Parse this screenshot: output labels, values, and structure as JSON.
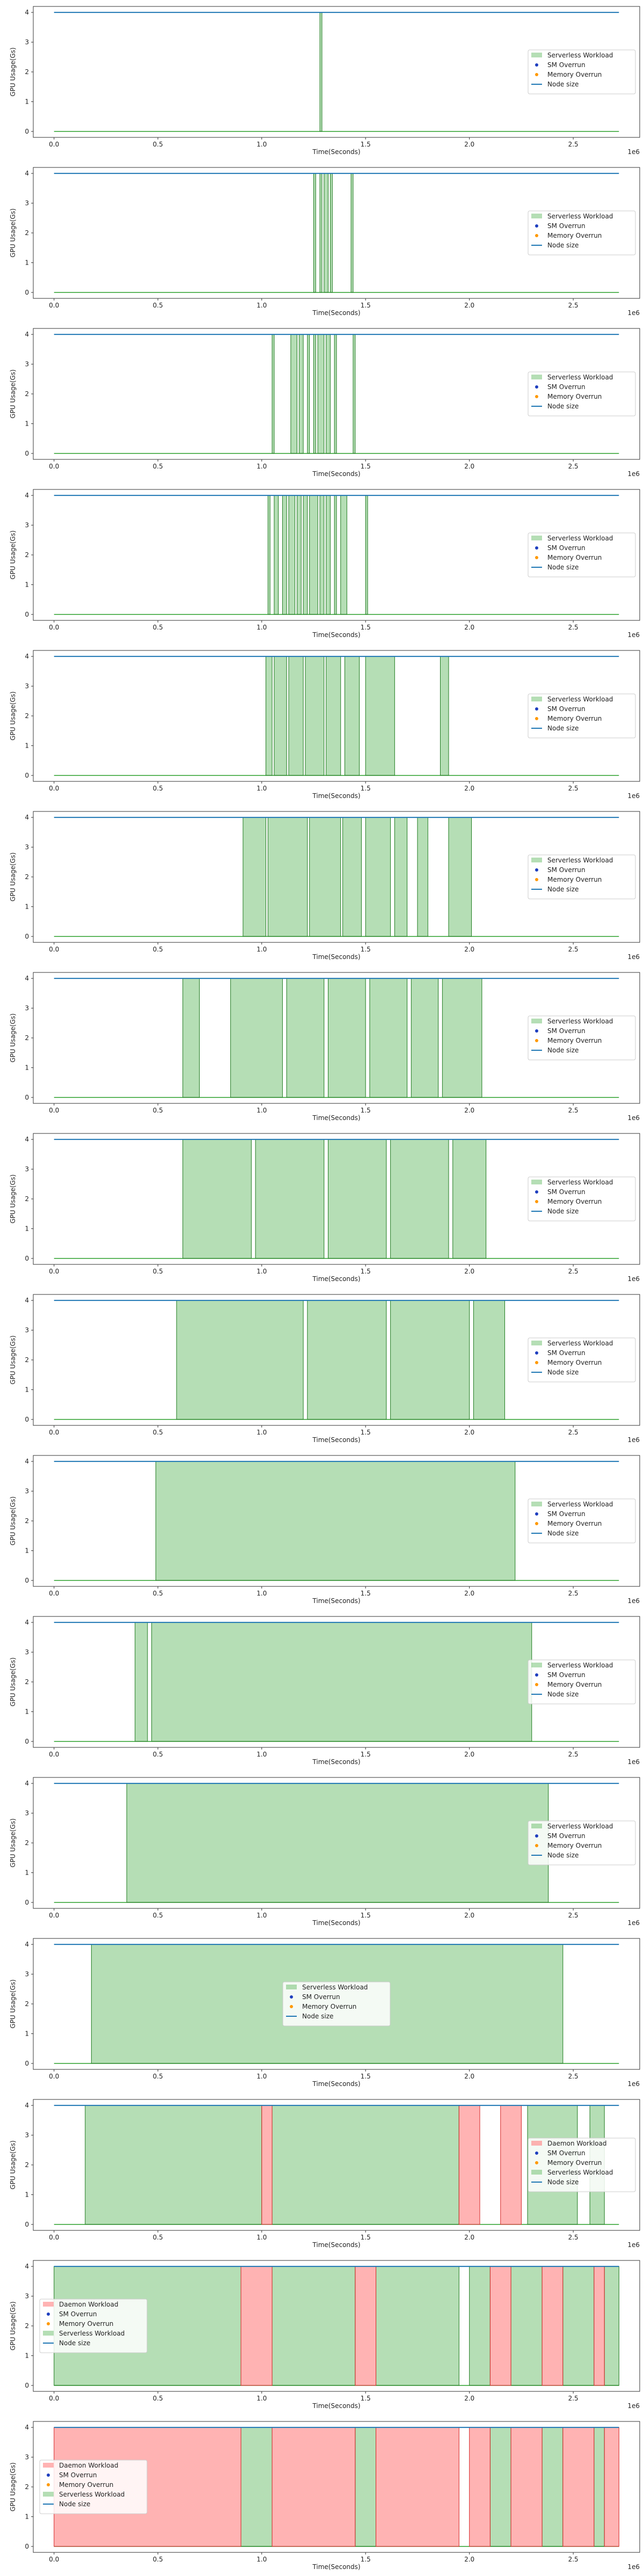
{
  "chart_data": [
    {
      "type": "area",
      "xlabel": "Time(Seconds)",
      "ylabel": "GPU Usage(Gs)",
      "x_offset_label": "1e6",
      "xlim": [
        -0.1,
        2.82
      ],
      "ylim": [
        -0.2,
        4.2
      ],
      "xticks": [
        0.0,
        0.5,
        1.0,
        1.5,
        2.0,
        2.5
      ],
      "yticks": [
        0,
        1,
        2,
        3,
        4
      ],
      "node_size": 4,
      "legend": {
        "placement": "center-right",
        "entries": [
          "Serverless Workload",
          "SM Overrun",
          "Memory Overrun",
          "Node size"
        ]
      },
      "series": [
        {
          "name": "Serverless Workload",
          "color": "#2ca02c",
          "segments": [
            [
              1.28,
              1.29
            ]
          ]
        }
      ]
    },
    {
      "type": "area",
      "xlabel": "Time(Seconds)",
      "ylabel": "GPU Usage(Gs)",
      "x_offset_label": "1e6",
      "xlim": [
        -0.1,
        2.82
      ],
      "ylim": [
        -0.2,
        4.2
      ],
      "xticks": [
        0.0,
        0.5,
        1.0,
        1.5,
        2.0,
        2.5
      ],
      "yticks": [
        0,
        1,
        2,
        3,
        4
      ],
      "node_size": 4,
      "legend": {
        "placement": "center-right",
        "entries": [
          "Serverless Workload",
          "SM Overrun",
          "Memory Overrun",
          "Node size"
        ]
      },
      "series": [
        {
          "name": "Serverless Workload",
          "color": "#2ca02c",
          "segments": [
            [
              1.25,
              1.26
            ],
            [
              1.28,
              1.29
            ],
            [
              1.3,
              1.32
            ],
            [
              1.33,
              1.34
            ],
            [
              1.43,
              1.44
            ]
          ]
        }
      ]
    },
    {
      "type": "area",
      "xlabel": "Time(Seconds)",
      "ylabel": "GPU Usage(Gs)",
      "x_offset_label": "1e6",
      "xlim": [
        -0.1,
        2.82
      ],
      "ylim": [
        -0.2,
        4.2
      ],
      "xticks": [
        0.0,
        0.5,
        1.0,
        1.5,
        2.0,
        2.5
      ],
      "yticks": [
        0,
        1,
        2,
        3,
        4
      ],
      "node_size": 4,
      "legend": {
        "placement": "center-right",
        "entries": [
          "Serverless Workload",
          "SM Overrun",
          "Memory Overrun",
          "Node size"
        ]
      },
      "series": [
        {
          "name": "Serverless Workload",
          "color": "#2ca02c",
          "segments": [
            [
              1.05,
              1.06
            ],
            [
              1.14,
              1.17
            ],
            [
              1.18,
              1.2
            ],
            [
              1.22,
              1.23
            ],
            [
              1.25,
              1.26
            ],
            [
              1.27,
              1.3
            ],
            [
              1.31,
              1.33
            ],
            [
              1.35,
              1.36
            ],
            [
              1.44,
              1.45
            ]
          ]
        }
      ]
    },
    {
      "type": "area",
      "xlabel": "Time(Seconds)",
      "ylabel": "GPU Usage(Gs)",
      "x_offset_label": "1e6",
      "xlim": [
        -0.1,
        2.82
      ],
      "ylim": [
        -0.2,
        4.2
      ],
      "xticks": [
        0.0,
        0.5,
        1.0,
        1.5,
        2.0,
        2.5
      ],
      "yticks": [
        0,
        1,
        2,
        3,
        4
      ],
      "node_size": 4,
      "legend": {
        "placement": "center-right",
        "entries": [
          "Serverless Workload",
          "SM Overrun",
          "Memory Overrun",
          "Node size"
        ]
      },
      "series": [
        {
          "name": "Serverless Workload",
          "color": "#2ca02c",
          "segments": [
            [
              1.03,
              1.04
            ],
            [
              1.06,
              1.08
            ],
            [
              1.1,
              1.12
            ],
            [
              1.13,
              1.16
            ],
            [
              1.17,
              1.19
            ],
            [
              1.2,
              1.22
            ],
            [
              1.23,
              1.27
            ],
            [
              1.28,
              1.3
            ],
            [
              1.31,
              1.33
            ],
            [
              1.35,
              1.36
            ],
            [
              1.38,
              1.41
            ],
            [
              1.5,
              1.51
            ]
          ]
        }
      ]
    },
    {
      "type": "area",
      "xlabel": "Time(Seconds)",
      "ylabel": "GPU Usage(Gs)",
      "x_offset_label": "1e6",
      "xlim": [
        -0.1,
        2.82
      ],
      "ylim": [
        -0.2,
        4.2
      ],
      "xticks": [
        0.0,
        0.5,
        1.0,
        1.5,
        2.0,
        2.5
      ],
      "yticks": [
        0,
        1,
        2,
        3,
        4
      ],
      "node_size": 4,
      "legend": {
        "placement": "center-right",
        "entries": [
          "Serverless Workload",
          "SM Overrun",
          "Memory Overrun",
          "Node size"
        ]
      },
      "series": [
        {
          "name": "Serverless Workload",
          "color": "#2ca02c",
          "segments": [
            [
              1.02,
              1.05
            ],
            [
              1.06,
              1.12
            ],
            [
              1.13,
              1.2
            ],
            [
              1.21,
              1.3
            ],
            [
              1.31,
              1.38
            ],
            [
              1.4,
              1.47
            ],
            [
              1.5,
              1.64
            ],
            [
              1.86,
              1.9
            ]
          ]
        }
      ]
    },
    {
      "type": "area",
      "xlabel": "Time(Seconds)",
      "ylabel": "GPU Usage(Gs)",
      "x_offset_label": "1e6",
      "xlim": [
        -0.1,
        2.82
      ],
      "ylim": [
        -0.2,
        4.2
      ],
      "xticks": [
        0.0,
        0.5,
        1.0,
        1.5,
        2.0,
        2.5
      ],
      "yticks": [
        0,
        1,
        2,
        3,
        4
      ],
      "node_size": 4,
      "legend": {
        "placement": "center-right",
        "entries": [
          "Serverless Workload",
          "SM Overrun",
          "Memory Overrun",
          "Node size"
        ]
      },
      "series": [
        {
          "name": "Serverless Workload",
          "color": "#2ca02c",
          "segments": [
            [
              0.91,
              1.02
            ],
            [
              1.03,
              1.22
            ],
            [
              1.23,
              1.38
            ],
            [
              1.39,
              1.48
            ],
            [
              1.5,
              1.62
            ],
            [
              1.64,
              1.7
            ],
            [
              1.75,
              1.8
            ],
            [
              1.9,
              2.01
            ]
          ]
        }
      ]
    },
    {
      "type": "area",
      "xlabel": "Time(Seconds)",
      "ylabel": "GPU Usage(Gs)",
      "x_offset_label": "1e6",
      "xlim": [
        -0.1,
        2.82
      ],
      "ylim": [
        -0.2,
        4.2
      ],
      "xticks": [
        0.0,
        0.5,
        1.0,
        1.5,
        2.0,
        2.5
      ],
      "yticks": [
        0,
        1,
        2,
        3,
        4
      ],
      "node_size": 4,
      "legend": {
        "placement": "center-right",
        "entries": [
          "Serverless Workload",
          "SM Overrun",
          "Memory Overrun",
          "Node size"
        ]
      },
      "series": [
        {
          "name": "Serverless Workload",
          "color": "#2ca02c",
          "segments": [
            [
              0.62,
              0.7
            ],
            [
              0.85,
              1.1
            ],
            [
              1.12,
              1.3
            ],
            [
              1.32,
              1.5
            ],
            [
              1.52,
              1.7
            ],
            [
              1.72,
              1.85
            ],
            [
              1.87,
              2.06
            ]
          ]
        }
      ]
    },
    {
      "type": "area",
      "xlabel": "Time(Seconds)",
      "ylabel": "GPU Usage(Gs)",
      "x_offset_label": "1e6",
      "xlim": [
        -0.1,
        2.82
      ],
      "ylim": [
        -0.2,
        4.2
      ],
      "xticks": [
        0.0,
        0.5,
        1.0,
        1.5,
        2.0,
        2.5
      ],
      "yticks": [
        0,
        1,
        2,
        3,
        4
      ],
      "node_size": 4,
      "legend": {
        "placement": "center-right",
        "entries": [
          "Serverless Workload",
          "SM Overrun",
          "Memory Overrun",
          "Node size"
        ]
      },
      "series": [
        {
          "name": "Serverless Workload",
          "color": "#2ca02c",
          "segments": [
            [
              0.62,
              0.95
            ],
            [
              0.97,
              1.3
            ],
            [
              1.32,
              1.6
            ],
            [
              1.62,
              1.9
            ],
            [
              1.92,
              2.08
            ]
          ]
        }
      ]
    },
    {
      "type": "area",
      "xlabel": "Time(Seconds)",
      "ylabel": "GPU Usage(Gs)",
      "x_offset_label": "1e6",
      "xlim": [
        -0.1,
        2.82
      ],
      "ylim": [
        -0.2,
        4.2
      ],
      "xticks": [
        0.0,
        0.5,
        1.0,
        1.5,
        2.0,
        2.5
      ],
      "yticks": [
        0,
        1,
        2,
        3,
        4
      ],
      "node_size": 4,
      "legend": {
        "placement": "center-right",
        "entries": [
          "Serverless Workload",
          "SM Overrun",
          "Memory Overrun",
          "Node size"
        ]
      },
      "series": [
        {
          "name": "Serverless Workload",
          "color": "#2ca02c",
          "segments": [
            [
              0.59,
              1.2
            ],
            [
              1.22,
              1.6
            ],
            [
              1.62,
              2.0
            ],
            [
              2.02,
              2.17
            ]
          ]
        }
      ]
    },
    {
      "type": "area",
      "xlabel": "Time(Seconds)",
      "ylabel": "GPU Usage(Gs)",
      "x_offset_label": "1e6",
      "xlim": [
        -0.1,
        2.82
      ],
      "ylim": [
        -0.2,
        4.2
      ],
      "xticks": [
        0.0,
        0.5,
        1.0,
        1.5,
        2.0,
        2.5
      ],
      "yticks": [
        0,
        1,
        2,
        3,
        4
      ],
      "node_size": 4,
      "legend": {
        "placement": "center-right",
        "entries": [
          "Serverless Workload",
          "SM Overrun",
          "Memory Overrun",
          "Node size"
        ]
      },
      "series": [
        {
          "name": "Serverless Workload",
          "color": "#2ca02c",
          "segments": [
            [
              0.49,
              2.22
            ]
          ]
        }
      ]
    },
    {
      "type": "area",
      "xlabel": "Time(Seconds)",
      "ylabel": "GPU Usage(Gs)",
      "x_offset_label": "1e6",
      "xlim": [
        -0.1,
        2.82
      ],
      "ylim": [
        -0.2,
        4.2
      ],
      "xticks": [
        0.0,
        0.5,
        1.0,
        1.5,
        2.0,
        2.5
      ],
      "yticks": [
        0,
        1,
        2,
        3,
        4
      ],
      "node_size": 4,
      "legend": {
        "placement": "center-right",
        "entries": [
          "Serverless Workload",
          "SM Overrun",
          "Memory Overrun",
          "Node size"
        ]
      },
      "series": [
        {
          "name": "Serverless Workload",
          "color": "#2ca02c",
          "segments": [
            [
              0.39,
              0.45
            ],
            [
              0.47,
              2.3
            ]
          ]
        }
      ]
    },
    {
      "type": "area",
      "xlabel": "Time(Seconds)",
      "ylabel": "GPU Usage(Gs)",
      "x_offset_label": "1e6",
      "xlim": [
        -0.1,
        2.82
      ],
      "ylim": [
        -0.2,
        4.2
      ],
      "xticks": [
        0.0,
        0.5,
        1.0,
        1.5,
        2.0,
        2.5
      ],
      "yticks": [
        0,
        1,
        2,
        3,
        4
      ],
      "node_size": 4,
      "legend": {
        "placement": "center-right",
        "entries": [
          "Serverless Workload",
          "SM Overrun",
          "Memory Overrun",
          "Node size"
        ]
      },
      "series": [
        {
          "name": "Serverless Workload",
          "color": "#2ca02c",
          "segments": [
            [
              0.35,
              2.38
            ]
          ]
        }
      ]
    },
    {
      "type": "area",
      "xlabel": "Time(Seconds)",
      "ylabel": "GPU Usage(Gs)",
      "x_offset_label": "1e6",
      "xlim": [
        -0.1,
        2.82
      ],
      "ylim": [
        -0.2,
        4.2
      ],
      "xticks": [
        0.0,
        0.5,
        1.0,
        1.5,
        2.0,
        2.5
      ],
      "yticks": [
        0,
        1,
        2,
        3,
        4
      ],
      "node_size": 4,
      "legend": {
        "placement": "center",
        "entries": [
          "Serverless Workload",
          "SM Overrun",
          "Memory Overrun",
          "Node size"
        ]
      },
      "series": [
        {
          "name": "Serverless Workload",
          "color": "#2ca02c",
          "segments": [
            [
              0.18,
              2.45
            ]
          ]
        }
      ]
    },
    {
      "type": "area",
      "xlabel": "Time(Seconds)",
      "ylabel": "GPU Usage(Gs)",
      "x_offset_label": "1e6",
      "xlim": [
        -0.1,
        2.82
      ],
      "ylim": [
        -0.2,
        4.2
      ],
      "xticks": [
        0.0,
        0.5,
        1.0,
        1.5,
        2.0,
        2.5
      ],
      "yticks": [
        0,
        1,
        2,
        3,
        4
      ],
      "node_size": 4,
      "legend": {
        "placement": "center-right",
        "entries": [
          "Daemon Workload",
          "SM Overrun",
          "Memory Overrun",
          "Serverless Workload",
          "Node size"
        ]
      },
      "series": [
        {
          "name": "Serverless Workload",
          "color": "#2ca02c",
          "segments": [
            [
              0.15,
              1.0
            ],
            [
              1.05,
              1.95
            ],
            [
              2.28,
              2.52
            ],
            [
              2.58,
              2.65
            ]
          ]
        },
        {
          "name": "Daemon Workload",
          "color": "#ff7f7f",
          "segments": [
            [
              1.0,
              1.05
            ],
            [
              1.95,
              2.05
            ],
            [
              2.15,
              2.25
            ]
          ]
        }
      ]
    },
    {
      "type": "area",
      "xlabel": "Time(Seconds)",
      "ylabel": "GPU Usage(Gs)",
      "x_offset_label": "1e6",
      "xlim": [
        -0.1,
        2.82
      ],
      "ylim": [
        -0.2,
        4.2
      ],
      "xticks": [
        0.0,
        0.5,
        1.0,
        1.5,
        2.0,
        2.5
      ],
      "yticks": [
        0,
        1,
        2,
        3,
        4
      ],
      "node_size": 4,
      "legend": {
        "placement": "center-left",
        "entries": [
          "Daemon Workload",
          "SM Overrun",
          "Memory Overrun",
          "Serverless Workload",
          "Node size"
        ]
      },
      "series": [
        {
          "name": "Serverless Workload",
          "color": "#2ca02c",
          "segments": [
            [
              0.0,
              0.9
            ],
            [
              1.05,
              1.45
            ],
            [
              1.55,
              1.95
            ],
            [
              2.0,
              2.1
            ],
            [
              2.2,
              2.35
            ],
            [
              2.45,
              2.6
            ],
            [
              2.65,
              2.72
            ]
          ]
        },
        {
          "name": "Daemon Workload",
          "color": "#ff7f7f",
          "segments": [
            [
              0.9,
              1.05
            ],
            [
              1.45,
              1.55
            ],
            [
              2.1,
              2.2
            ],
            [
              2.35,
              2.45
            ],
            [
              2.6,
              2.65
            ]
          ]
        }
      ]
    },
    {
      "type": "area",
      "xlabel": "Time(Seconds)",
      "ylabel": "GPU Usage(Gs)",
      "x_offset_label": "1e6",
      "xlim": [
        -0.1,
        2.82
      ],
      "ylim": [
        -0.2,
        4.2
      ],
      "xticks": [
        0.0,
        0.5,
        1.0,
        1.5,
        2.0,
        2.5
      ],
      "yticks": [
        0,
        1,
        2,
        3,
        4
      ],
      "node_size": 4,
      "legend": {
        "placement": "center-left",
        "entries": [
          "Daemon Workload",
          "SM Overrun",
          "Memory Overrun",
          "Serverless Workload",
          "Node size"
        ]
      },
      "series": [
        {
          "name": "Serverless Workload",
          "color": "#2ca02c",
          "segments": [
            [
              0.9,
              1.05
            ],
            [
              1.45,
              1.55
            ],
            [
              2.1,
              2.2
            ],
            [
              2.35,
              2.45
            ],
            [
              2.6,
              2.65
            ]
          ]
        },
        {
          "name": "Daemon Workload",
          "color": "#ff7f7f",
          "segments": [
            [
              0.0,
              0.9
            ],
            [
              1.05,
              1.45
            ],
            [
              1.55,
              1.95
            ],
            [
              2.0,
              2.1
            ],
            [
              2.2,
              2.35
            ],
            [
              2.45,
              2.6
            ],
            [
              2.65,
              2.72
            ]
          ]
        }
      ]
    }
  ]
}
